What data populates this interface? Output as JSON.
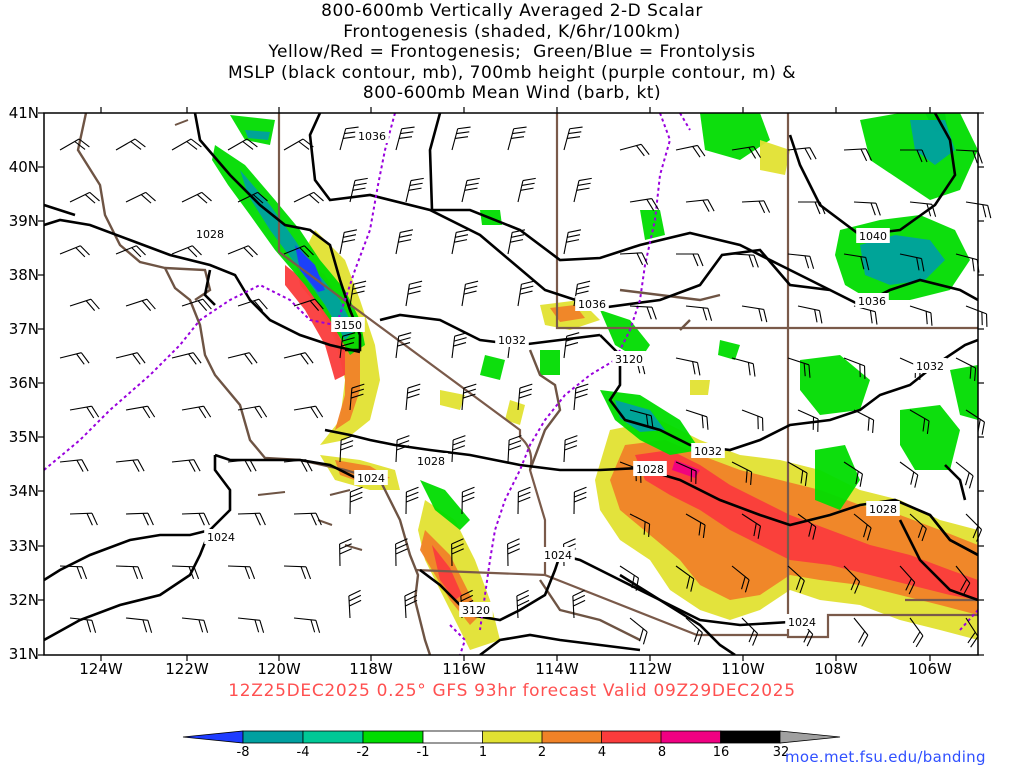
{
  "title_lines": [
    "800-600mb Vertically Averaged 2-D Scalar",
    "Frontogenesis (shaded, K/6hr/100km)",
    "Yellow/Red = Frontogenesis;  Green/Blue = Frontolysis",
    "MSLP (black contour, mb), 700mb height (purple contour, m) &",
    "800-600mb Mean Wind (barb, kt)"
  ],
  "lat_labels": [
    "41N",
    "40N",
    "39N",
    "38N",
    "37N",
    "36N",
    "35N",
    "34N",
    "33N",
    "32N",
    "31N"
  ],
  "lon_labels": [
    "124W",
    "122W",
    "120W",
    "118W",
    "116W",
    "114W",
    "112W",
    "110W",
    "108W",
    "106W"
  ],
  "contour_labels": [
    "1036",
    "1028",
    "3150",
    "1032",
    "1036",
    "3120",
    "1040",
    "1036",
    "1032",
    "1032",
    "1028",
    "1028",
    "1024",
    "1024",
    "1028",
    "1024",
    "3120",
    "1024"
  ],
  "footer": "12Z25DEC2025 0.25° GFS 93hr forecast Valid 09Z29DEC2025",
  "colorbar": {
    "labels": [
      "-8",
      "-4",
      "-2",
      "-1",
      "1",
      "2",
      "4",
      "8",
      "16",
      "32"
    ],
    "colors": [
      "#1e3cff",
      "#00a0a0",
      "#00c896",
      "#00dc00",
      "#ffffff",
      "#e1e132",
      "#f08228",
      "#fa3c3c",
      "#f00082",
      "#000000",
      "#a0a0a0"
    ]
  },
  "url": "moe.met.fsu.edu/banding"
}
